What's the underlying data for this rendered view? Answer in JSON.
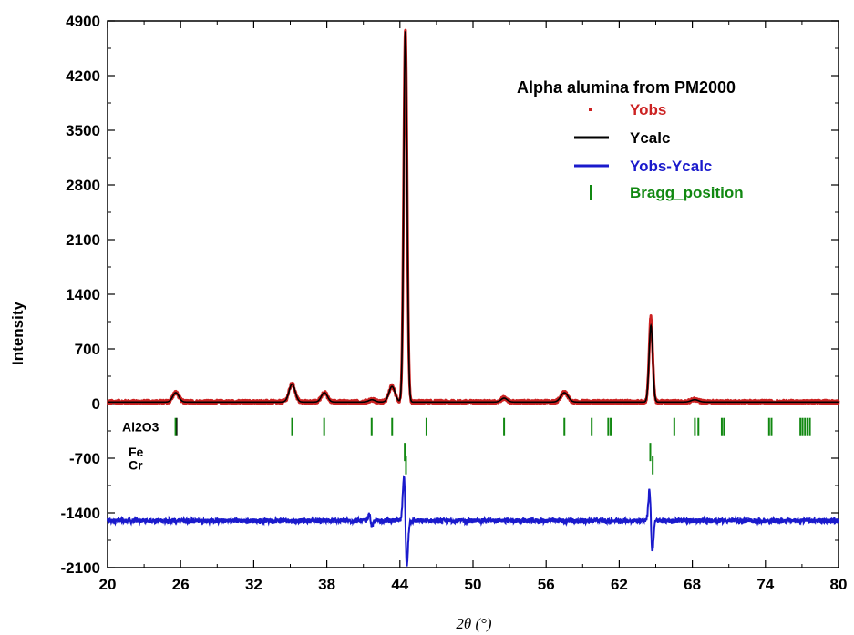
{
  "chart_data": {
    "type": "line",
    "title": "",
    "xlabel": "2θ (°)",
    "ylabel": "Intensity",
    "xlim": [
      20,
      80
    ],
    "ylim": [
      -2100,
      4900
    ],
    "xticks": [
      20,
      26,
      32,
      38,
      44,
      50,
      56,
      62,
      68,
      74,
      80
    ],
    "yticks": [
      -2100,
      -1400,
      -700,
      0,
      700,
      1400,
      2100,
      2800,
      3500,
      4200,
      4900
    ],
    "grid": false,
    "legend": {
      "title": "Alpha alumina from PM2000",
      "placement": "top-right",
      "entries": [
        {
          "label": "Yobs",
          "color": "#cc2222",
          "marker": "dot"
        },
        {
          "label": "Ycalc",
          "color": "#000000",
          "marker": "line"
        },
        {
          "label": "Yobs-Ycalc",
          "color": "#1a1acc",
          "marker": "line"
        },
        {
          "label": "Bragg_position",
          "color": "#118811",
          "marker": "tick"
        }
      ]
    },
    "baseline": 20,
    "difference_offset": -1500,
    "peaks": [
      {
        "x": 25.6,
        "height": 120,
        "width": 0.25
      },
      {
        "x": 35.15,
        "height": 230,
        "width": 0.25
      },
      {
        "x": 37.8,
        "height": 120,
        "width": 0.25
      },
      {
        "x": 41.7,
        "height": 30,
        "width": 0.25
      },
      {
        "x": 43.35,
        "height": 200,
        "width": 0.25
      },
      {
        "x": 44.45,
        "height": 4750,
        "width": 0.14
      },
      {
        "x": 52.55,
        "height": 50,
        "width": 0.25
      },
      {
        "x": 57.5,
        "height": 120,
        "width": 0.3
      },
      {
        "x": 64.6,
        "height": 980,
        "width": 0.15
      },
      {
        "x": 68.2,
        "height": 30,
        "width": 0.3
      }
    ],
    "yobs_spikes": [
      {
        "x": 64.6,
        "y": 1110
      }
    ],
    "difference_features": [
      {
        "x": 41.6,
        "amplitude": 80
      },
      {
        "x": 44.45,
        "amplitude": 600
      },
      {
        "x": 64.6,
        "amplitude": 400
      }
    ],
    "bragg_phases": [
      {
        "name": "Al2O3",
        "color": "#118811",
        "y_center": -300,
        "positions": [
          25.58,
          35.15,
          37.78,
          41.68,
          43.36,
          46.18,
          52.55,
          57.5,
          59.74,
          61.1,
          61.3,
          66.52,
          68.21,
          68.5,
          70.42,
          70.6,
          74.3,
          74.5,
          76.87,
          77.05,
          77.25,
          77.45,
          77.65
        ]
      },
      {
        "name": "Fe",
        "color": "#118811",
        "y_center": -620,
        "positions": [
          44.4,
          64.55
        ]
      },
      {
        "name": "Cr",
        "color": "#118811",
        "y_center": -790,
        "positions": [
          44.5,
          64.75
        ]
      }
    ]
  }
}
